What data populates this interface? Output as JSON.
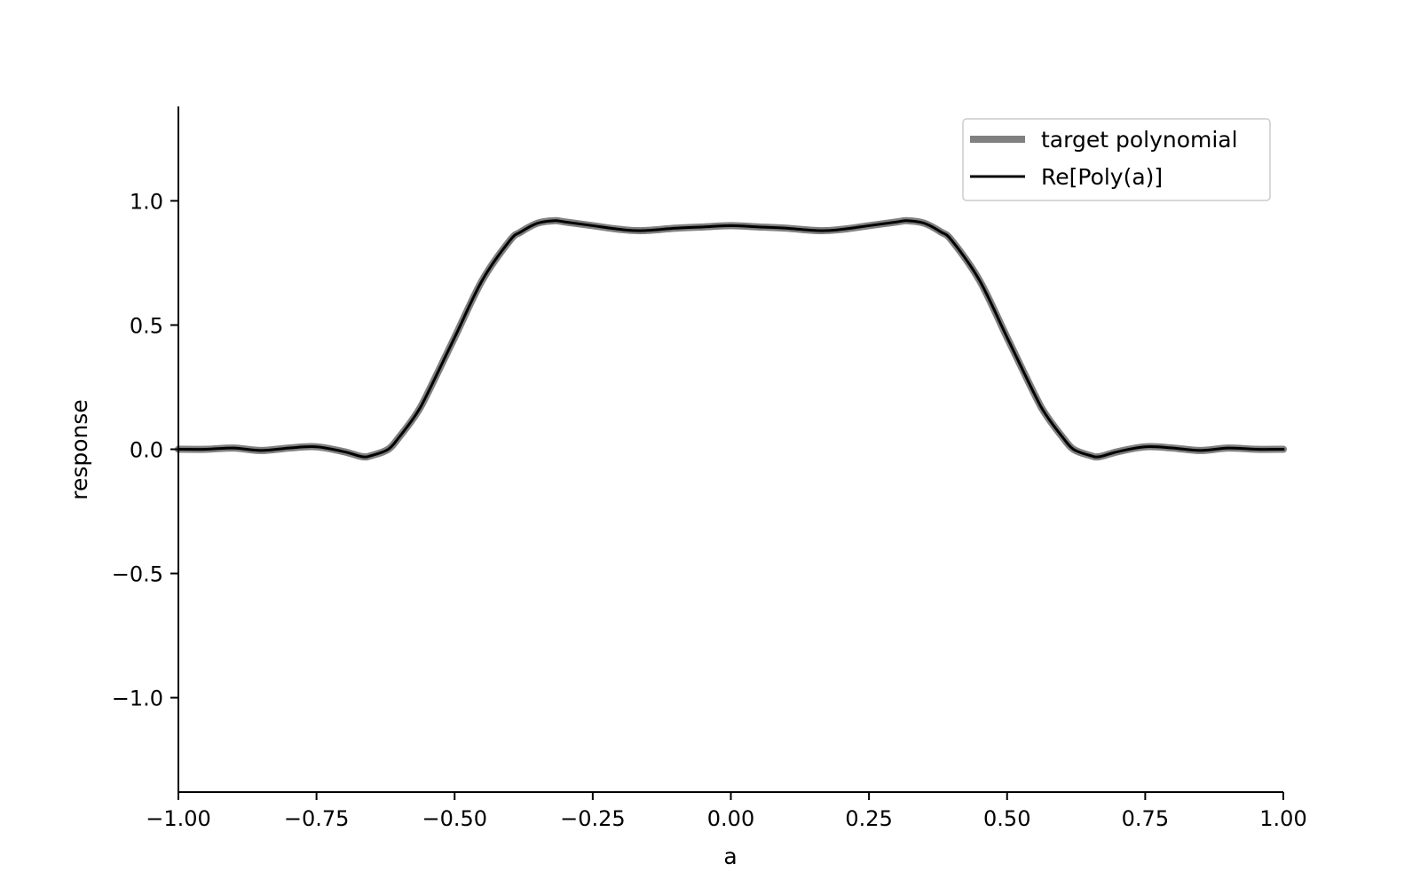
{
  "chart_data": {
    "type": "line",
    "xlabel": "a",
    "ylabel": "response",
    "xlim": [
      -1.0,
      1.0
    ],
    "ylim": [
      -1.38,
      1.38
    ],
    "xticks": [
      -1.0,
      -0.75,
      -0.5,
      -0.25,
      0.0,
      0.25,
      0.5,
      0.75,
      1.0
    ],
    "xtick_labels": [
      "−1.00",
      "−0.75",
      "−0.50",
      "−0.25",
      "0.00",
      "0.25",
      "0.50",
      "0.75",
      "1.00"
    ],
    "yticks": [
      -1.0,
      -0.5,
      0.0,
      0.5,
      1.0
    ],
    "ytick_labels": [
      "−1.0",
      "−0.5",
      "0.0",
      "0.5",
      "1.0"
    ],
    "grid": false,
    "legend_position": "top-right",
    "x": [
      -1.0,
      -0.95,
      -0.9,
      -0.85,
      -0.8,
      -0.75,
      -0.7,
      -0.667,
      -0.65,
      -0.62,
      -0.6,
      -0.57,
      -0.55,
      -0.5,
      -0.45,
      -0.4,
      -0.38,
      -0.35,
      -0.32,
      -0.3,
      -0.25,
      -0.2,
      -0.16,
      -0.1,
      -0.05,
      0.0,
      0.05,
      0.1,
      0.16,
      0.2,
      0.25,
      0.3,
      0.32,
      0.35,
      0.38,
      0.4,
      0.45,
      0.5,
      0.55,
      0.57,
      0.6,
      0.62,
      0.65,
      0.667,
      0.7,
      0.75,
      0.8,
      0.85,
      0.9,
      0.95,
      1.0
    ],
    "series": [
      {
        "name": "target polynomial",
        "color": "#808080",
        "values": [
          0.0,
          0.0,
          0.005,
          -0.005,
          0.005,
          0.01,
          -0.01,
          -0.03,
          -0.025,
          0.0,
          0.05,
          0.14,
          0.22,
          0.45,
          0.68,
          0.84,
          0.875,
          0.91,
          0.92,
          0.915,
          0.9,
          0.885,
          0.88,
          0.89,
          0.895,
          0.9,
          0.895,
          0.89,
          0.88,
          0.885,
          0.9,
          0.915,
          0.92,
          0.91,
          0.875,
          0.84,
          0.68,
          0.45,
          0.22,
          0.14,
          0.05,
          0.0,
          -0.025,
          -0.03,
          -0.01,
          0.01,
          0.005,
          -0.005,
          0.005,
          0.0,
          0.0
        ]
      },
      {
        "name": "Re[Poly(a)]",
        "color": "#000000",
        "values": [
          0.0,
          0.0,
          0.005,
          -0.005,
          0.005,
          0.01,
          -0.01,
          -0.03,
          -0.025,
          0.0,
          0.05,
          0.14,
          0.22,
          0.45,
          0.68,
          0.84,
          0.875,
          0.91,
          0.92,
          0.915,
          0.9,
          0.885,
          0.88,
          0.89,
          0.895,
          0.9,
          0.895,
          0.89,
          0.88,
          0.885,
          0.9,
          0.915,
          0.92,
          0.91,
          0.875,
          0.84,
          0.68,
          0.45,
          0.22,
          0.14,
          0.05,
          0.0,
          -0.025,
          -0.03,
          -0.01,
          0.01,
          0.005,
          -0.005,
          0.005,
          0.0,
          0.0
        ]
      }
    ]
  }
}
